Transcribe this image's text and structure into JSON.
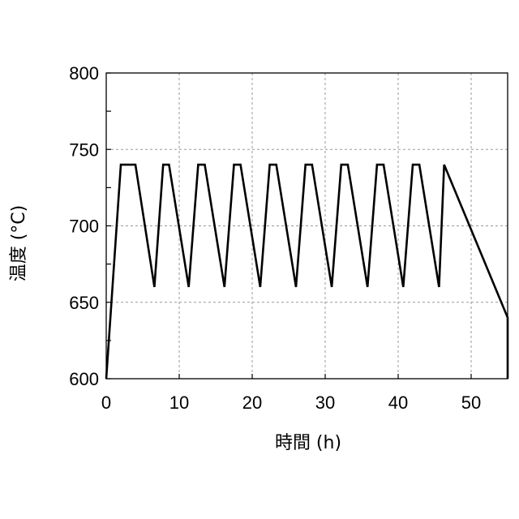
{
  "chart_data": {
    "type": "line",
    "xlabel": "時間 (h)",
    "ylabel": "温度 (°C)",
    "xlim": [
      0,
      55
    ],
    "ylim": [
      600,
      800
    ],
    "x_ticks": [
      0,
      10,
      20,
      30,
      40,
      50
    ],
    "x_tick_labels": [
      "0",
      "10",
      "20",
      "30",
      "40",
      "50"
    ],
    "y_ticks": [
      600,
      650,
      700,
      750,
      800
    ],
    "y_tick_labels": [
      "600",
      "650",
      "700",
      "750",
      "800"
    ],
    "grid": true,
    "legend": "none",
    "series": [
      {
        "color": "#000000",
        "x": [
          0,
          2.0,
          4.0,
          6.6,
          7.8,
          8.6,
          11.3,
          12.6,
          13.5,
          16.2,
          17.5,
          18.4,
          21.1,
          22.4,
          23.3,
          26.0,
          27.3,
          28.2,
          30.9,
          32.2,
          33.1,
          35.8,
          37.1,
          38.0,
          40.7,
          42.0,
          42.9,
          45.6,
          46.3,
          55.0,
          55.0
        ],
        "y": [
          600,
          740,
          740,
          660,
          740,
          740,
          660,
          740,
          740,
          660,
          740,
          740,
          660,
          740,
          740,
          660,
          740,
          740,
          660,
          740,
          740,
          660,
          740,
          740,
          660,
          740,
          740,
          660,
          740,
          640,
          600
        ]
      }
    ]
  }
}
